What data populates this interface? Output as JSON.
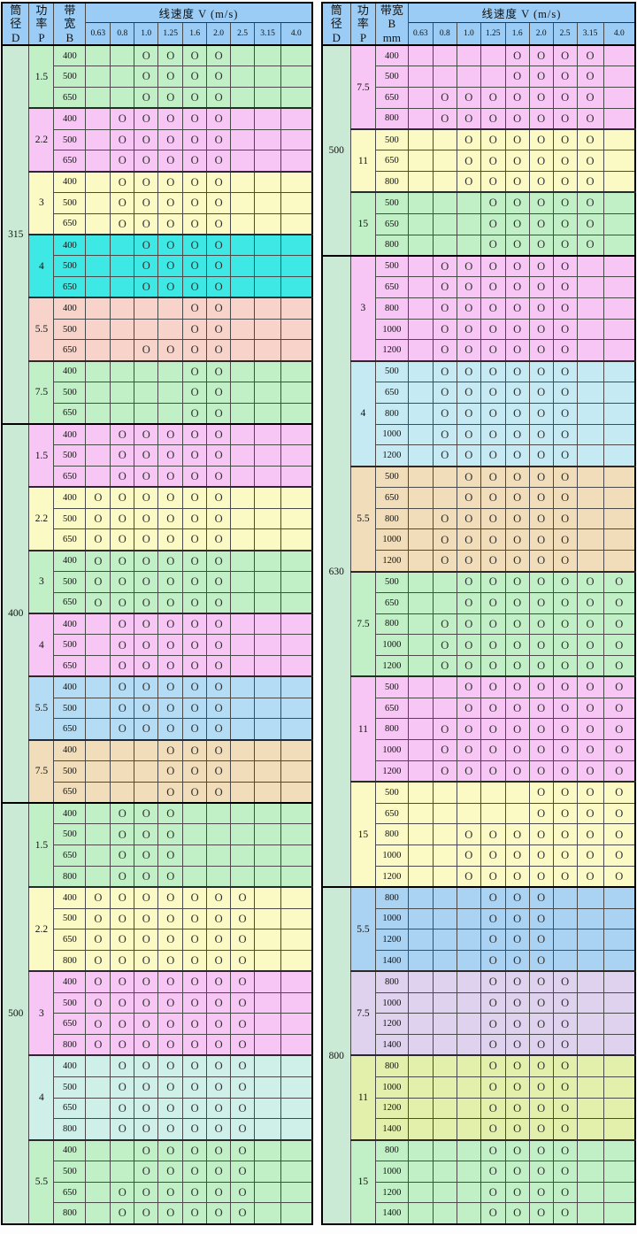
{
  "palette": {
    "header_blue": "#9accf5",
    "d_col": "#cbead6",
    "green": "#c2f0c6",
    "pink": "#f7c6f5",
    "yellow": "#fbfac5",
    "cyan": "#3ee8e4",
    "salmon": "#f8d3c9",
    "blue": "#b4dcf4",
    "tan": "#f1ddb9",
    "pale_cyan": "#cfefe9",
    "cyan_blue": "#c6eaf3",
    "blue2": "#aad2f3",
    "lavender": "#ded2ef",
    "yellow_green": "#e2f0ab",
    "thin_border": "#4a4a4a",
    "thick_border": "#000000"
  },
  "mark_symbol": "O",
  "speed_columns": [
    "0.63",
    "0.8",
    "1.0",
    "1.25",
    "1.6",
    "2.0",
    "2.5",
    "3.15",
    "4.0"
  ],
  "tables": [
    {
      "header": {
        "d": "筒\n径\nD",
        "p": "功\n率\nP",
        "b": "带\n宽\nB",
        "speed_title": "线速度 V (m/s)"
      },
      "groups": [
        {
          "d": "315",
          "powers": [
            {
              "p": "1.5",
              "c": "green",
              "rows": [
                [
                  "400",
                  "..OOOO..."
                ],
                [
                  "500",
                  "..OOOO..."
                ],
                [
                  "650",
                  "..OOOO..."
                ]
              ]
            },
            {
              "p": "2.2",
              "c": "pink",
              "rows": [
                [
                  "400",
                  ".OOOOO..."
                ],
                [
                  "500",
                  ".OOOOO..."
                ],
                [
                  "650",
                  ".OOOOO..."
                ]
              ]
            },
            {
              "p": "3",
              "c": "yellow",
              "rows": [
                [
                  "400",
                  ".OOOOO..."
                ],
                [
                  "500",
                  ".OOOOO..."
                ],
                [
                  "650",
                  ".OOOOO..."
                ]
              ]
            },
            {
              "p": "4",
              "c": "cyan",
              "rows": [
                [
                  "400",
                  "..OOOO..."
                ],
                [
                  "500",
                  "..OOOO..."
                ],
                [
                  "650",
                  "..OOOO..."
                ]
              ]
            },
            {
              "p": "5.5",
              "c": "salmon",
              "rows": [
                [
                  "400",
                  "....OO..."
                ],
                [
                  "500",
                  "....OO..."
                ],
                [
                  "650",
                  "..OOOO..."
                ]
              ]
            },
            {
              "p": "7.5",
              "c": "green",
              "rows": [
                [
                  "400",
                  "....OO..."
                ],
                [
                  "500",
                  "....OO..."
                ],
                [
                  "650",
                  "....OO..."
                ]
              ]
            }
          ]
        },
        {
          "d": "400",
          "powers": [
            {
              "p": "1.5",
              "c": "pink",
              "rows": [
                [
                  "400",
                  ".OOOOO..."
                ],
                [
                  "500",
                  ".OOOOO..."
                ],
                [
                  "650",
                  ".OOOOO..."
                ]
              ]
            },
            {
              "p": "2.2",
              "c": "yellow",
              "rows": [
                [
                  "400",
                  "OOOOOO..."
                ],
                [
                  "500",
                  "OOOOOO..."
                ],
                [
                  "650",
                  "OOOOOO..."
                ]
              ]
            },
            {
              "p": "3",
              "c": "green",
              "rows": [
                [
                  "400",
                  "OOOOOO..."
                ],
                [
                  "500",
                  "OOOOOO..."
                ],
                [
                  "650",
                  "OOOOOO..."
                ]
              ]
            },
            {
              "p": "4",
              "c": "pink",
              "rows": [
                [
                  "400",
                  ".OOOOO..."
                ],
                [
                  "500",
                  ".OOOOO..."
                ],
                [
                  "650",
                  ".OOOOO..."
                ]
              ]
            },
            {
              "p": "5.5",
              "c": "blue",
              "rows": [
                [
                  "400",
                  ".OOOOO..."
                ],
                [
                  "500",
                  ".OOOOO..."
                ],
                [
                  "650",
                  ".OOOOO..."
                ]
              ]
            },
            {
              "p": "7.5",
              "c": "tan",
              "rows": [
                [
                  "400",
                  "...OOO..."
                ],
                [
                  "500",
                  "...OOO..."
                ],
                [
                  "650",
                  "...OOO..."
                ]
              ]
            }
          ]
        },
        {
          "d": "500",
          "powers": [
            {
              "p": "1.5",
              "c": "green",
              "rows": [
                [
                  "400",
                  ".OOO....."
                ],
                [
                  "500",
                  ".OOO....."
                ],
                [
                  "650",
                  ".OOO....."
                ],
                [
                  "800",
                  ".OOO....."
                ]
              ]
            },
            {
              "p": "2.2",
              "c": "yellow",
              "rows": [
                [
                  "400",
                  "OOOOOOO.."
                ],
                [
                  "500",
                  "OOOOOOO.."
                ],
                [
                  "650",
                  "OOOOOOO.."
                ],
                [
                  "800",
                  "OOOOOOO.."
                ]
              ]
            },
            {
              "p": "3",
              "c": "pink",
              "rows": [
                [
                  "400",
                  "OOOOOOO.."
                ],
                [
                  "500",
                  "OOOOOOO.."
                ],
                [
                  "650",
                  "OOOOOOO.."
                ],
                [
                  "800",
                  "OOOOOOO.."
                ]
              ]
            },
            {
              "p": "4",
              "c": "pale_cyan",
              "rows": [
                [
                  "400",
                  ".OOOOOO.."
                ],
                [
                  "500",
                  ".OOOOOO.."
                ],
                [
                  "650",
                  ".OOOOOO.."
                ],
                [
                  "800",
                  ".OOOOOO.."
                ]
              ]
            },
            {
              "p": "5.5",
              "c": "green",
              "rows": [
                [
                  "400",
                  "..OOOOO.."
                ],
                [
                  "500",
                  "..OOOOO.."
                ],
                [
                  "650",
                  ".OOOOOO.."
                ],
                [
                  "800",
                  ".OOOOOO.."
                ]
              ]
            }
          ]
        }
      ]
    },
    {
      "header": {
        "d": "筒\n径\nD",
        "p": "功\n率\nP",
        "b": "带宽\nB\nmm",
        "speed_title": "线速度 V (m/s)"
      },
      "groups": [
        {
          "d": "500",
          "powers": [
            {
              "p": "7.5",
              "c": "pink",
              "rows": [
                [
                  "400",
                  "....OOOO."
                ],
                [
                  "500",
                  "....OOOO."
                ],
                [
                  "650",
                  ".OOOOOOO."
                ],
                [
                  "800",
                  ".OOOOOOO."
                ]
              ]
            },
            {
              "p": "11",
              "c": "yellow",
              "rows": [
                [
                  "500",
                  "..OOOOOO."
                ],
                [
                  "650",
                  "..OOOOOO."
                ],
                [
                  "800",
                  "..OOOOOO."
                ]
              ]
            },
            {
              "p": "15",
              "c": "green",
              "rows": [
                [
                  "500",
                  "...OOOOO."
                ],
                [
                  "650",
                  "...OOOOO."
                ],
                [
                  "800",
                  "...OOOOO."
                ]
              ]
            }
          ]
        },
        {
          "d": "630",
          "powers": [
            {
              "p": "3",
              "c": "pink",
              "rows": [
                [
                  "500",
                  ".OOOOOO.."
                ],
                [
                  "650",
                  ".OOOOOO.."
                ],
                [
                  "800",
                  ".OOOOOO.."
                ],
                [
                  "1000",
                  ".OOOOOO.."
                ],
                [
                  "1200",
                  ".OOOOOO.."
                ]
              ]
            },
            {
              "p": "4",
              "c": "cyan_blue",
              "rows": [
                [
                  "500",
                  ".OOOOOO.."
                ],
                [
                  "650",
                  ".OOOOOO.."
                ],
                [
                  "800",
                  ".OOOOOO.."
                ],
                [
                  "1000",
                  ".OOOOOO.."
                ],
                [
                  "1200",
                  ".OOOOOO.."
                ]
              ]
            },
            {
              "p": "5.5",
              "c": "tan",
              "rows": [
                [
                  "500",
                  "..OOOOO.."
                ],
                [
                  "650",
                  "..OOOOO.."
                ],
                [
                  "800",
                  ".OOOOOO.."
                ],
                [
                  "1000",
                  ".OOOOOO.."
                ],
                [
                  "1200",
                  ".OOOOOO.."
                ]
              ]
            },
            {
              "p": "7.5",
              "c": "green",
              "rows": [
                [
                  "500",
                  "..OOOOOOO"
                ],
                [
                  "650",
                  "..OOOOOOO"
                ],
                [
                  "800",
                  ".OOOOOOOO"
                ],
                [
                  "1000",
                  ".OOOOOOOO"
                ],
                [
                  "1200",
                  ".OOOOOOOO"
                ]
              ]
            },
            {
              "p": "11",
              "c": "pink",
              "rows": [
                [
                  "500",
                  "..OOOOOOO"
                ],
                [
                  "650",
                  "..OOOOOOO"
                ],
                [
                  "800",
                  ".OOOOOOOO"
                ],
                [
                  "1000",
                  ".OOOOOOOO"
                ],
                [
                  "1200",
                  ".OOOOOOOO"
                ]
              ]
            },
            {
              "p": "15",
              "c": "yellow",
              "rows": [
                [
                  "500",
                  ".....OOOO"
                ],
                [
                  "650",
                  ".....OOOO"
                ],
                [
                  "800",
                  "..OOOOOOO"
                ],
                [
                  "1000",
                  "..OOOOOOO"
                ],
                [
                  "1200",
                  "..OOOOOOO"
                ]
              ]
            }
          ]
        },
        {
          "d": "800",
          "powers": [
            {
              "p": "5.5",
              "c": "blue2",
              "rows": [
                [
                  "800",
                  "...OOO..."
                ],
                [
                  "1000",
                  "...OOO..."
                ],
                [
                  "1200",
                  "...OOO..."
                ],
                [
                  "1400",
                  "...OOO..."
                ]
              ]
            },
            {
              "p": "7.5",
              "c": "lavender",
              "rows": [
                [
                  "800",
                  "...OOOO.."
                ],
                [
                  "1000",
                  "...OOOO.."
                ],
                [
                  "1200",
                  "...OOOO.."
                ],
                [
                  "1400",
                  "...OOOO.."
                ]
              ]
            },
            {
              "p": "11",
              "c": "yellow_green",
              "rows": [
                [
                  "800",
                  "...OOOO.."
                ],
                [
                  "1000",
                  "...OOOO.."
                ],
                [
                  "1200",
                  "...OOOO.."
                ],
                [
                  "1400",
                  "...OOOO.."
                ]
              ]
            },
            {
              "p": "15",
              "c": "green",
              "rows": [
                [
                  "800",
                  "...OOOO.."
                ],
                [
                  "1000",
                  "...OOOO.."
                ],
                [
                  "1200",
                  "...OOOO.."
                ],
                [
                  "1400",
                  "...OOOO.."
                ]
              ]
            }
          ]
        }
      ]
    }
  ]
}
